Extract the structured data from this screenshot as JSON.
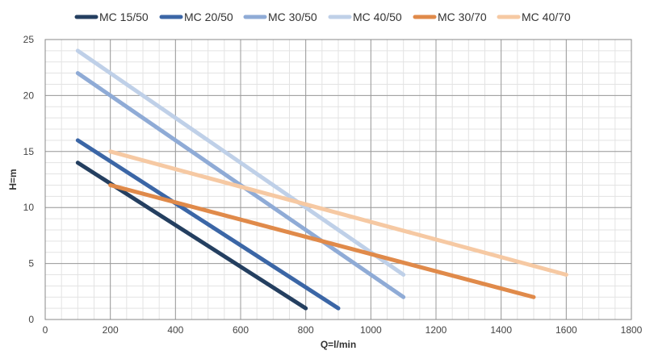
{
  "chart_data": {
    "type": "line",
    "title": "",
    "xlabel": "Q=l/min",
    "ylabel": "H=m",
    "xlim": [
      0,
      1800
    ],
    "ylim": [
      0,
      25
    ],
    "x_ticks": [
      0,
      200,
      400,
      600,
      800,
      1000,
      1200,
      1400,
      1600,
      1800
    ],
    "y_ticks": [
      0,
      5,
      10,
      15,
      20,
      25
    ],
    "grid": true,
    "legend_position": "top",
    "series": [
      {
        "name": "MC 15/50",
        "color": "#243f60",
        "points": [
          [
            100,
            14
          ],
          [
            800,
            1
          ]
        ]
      },
      {
        "name": "MC 20/50",
        "color": "#3b66a6",
        "points": [
          [
            100,
            16
          ],
          [
            900,
            1
          ]
        ]
      },
      {
        "name": "MC 30/50",
        "color": "#8fabd6",
        "points": [
          [
            100,
            22
          ],
          [
            1100,
            2
          ]
        ]
      },
      {
        "name": "MC 40/50",
        "color": "#bfd0e8",
        "points": [
          [
            100,
            24
          ],
          [
            1100,
            4
          ]
        ]
      },
      {
        "name": "MC 30/70",
        "color": "#e08a4a",
        "points": [
          [
            200,
            12
          ],
          [
            1500,
            2
          ]
        ]
      },
      {
        "name": "MC 40/70",
        "color": "#f6c9a3",
        "points": [
          [
            200,
            15
          ],
          [
            1600,
            4
          ]
        ]
      }
    ]
  }
}
